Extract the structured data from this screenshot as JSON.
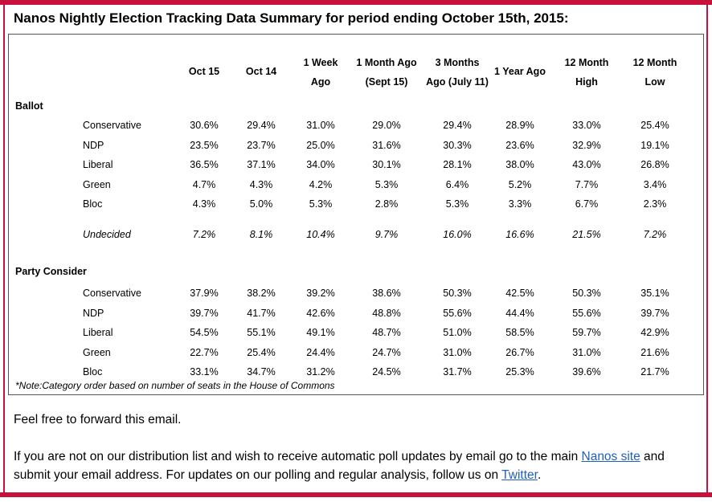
{
  "title": "Nanos Nightly Election Tracking Data Summary for period ending October 15th, 2015:",
  "columns": [
    [
      "Oct 15"
    ],
    [
      "Oct 14"
    ],
    [
      "1 Week",
      "Ago"
    ],
    [
      "1 Month Ago",
      "(Sept 15)"
    ],
    [
      "3 Months",
      "Ago (July 11)"
    ],
    [
      "1 Year Ago"
    ],
    [
      "12 Month",
      "High"
    ],
    [
      "12 Month",
      "Low"
    ]
  ],
  "ballot": {
    "section_label": "Ballot",
    "rows": [
      {
        "label": "Conservative",
        "values": [
          "30.6%",
          "29.4%",
          "31.0%",
          "29.0%",
          "29.4%",
          "28.9%",
          "33.0%",
          "25.4%"
        ]
      },
      {
        "label": "NDP",
        "values": [
          "23.5%",
          "23.7%",
          "25.0%",
          "31.6%",
          "30.3%",
          "23.6%",
          "32.9%",
          "19.1%"
        ]
      },
      {
        "label": "Liberal",
        "values": [
          "36.5%",
          "37.1%",
          "34.0%",
          "30.1%",
          "28.1%",
          "38.0%",
          "43.0%",
          "26.8%"
        ]
      },
      {
        "label": "Green",
        "values": [
          "4.7%",
          "4.3%",
          "4.2%",
          "5.3%",
          "6.4%",
          "5.2%",
          "7.7%",
          "3.4%"
        ]
      },
      {
        "label": "Bloc",
        "values": [
          "4.3%",
          "5.0%",
          "5.3%",
          "2.8%",
          "5.3%",
          "3.3%",
          "6.7%",
          "2.3%"
        ]
      }
    ],
    "undecided": {
      "label": "Undecided",
      "values": [
        "7.2%",
        "8.1%",
        "10.4%",
        "9.7%",
        "16.0%",
        "16.6%",
        "21.5%",
        "7.2%"
      ]
    }
  },
  "party_consider": {
    "section_label": "Party Consider",
    "rows": [
      {
        "label": "Conservative",
        "values": [
          "37.9%",
          "38.2%",
          "39.2%",
          "38.6%",
          "50.3%",
          "42.5%",
          "50.3%",
          "35.1%"
        ]
      },
      {
        "label": "NDP",
        "values": [
          "39.7%",
          "41.7%",
          "42.6%",
          "48.8%",
          "55.6%",
          "44.4%",
          "55.6%",
          "39.7%"
        ]
      },
      {
        "label": "Liberal",
        "values": [
          "54.5%",
          "55.1%",
          "49.1%",
          "48.7%",
          "51.0%",
          "58.5%",
          "59.7%",
          "42.9%"
        ]
      },
      {
        "label": "Green",
        "values": [
          "22.7%",
          "25.4%",
          "24.4%",
          "24.7%",
          "31.0%",
          "26.7%",
          "31.0%",
          "21.6%"
        ]
      },
      {
        "label": "Bloc",
        "values": [
          "33.1%",
          "34.7%",
          "31.2%",
          "24.5%",
          "31.7%",
          "25.3%",
          "39.6%",
          "21.7%"
        ]
      }
    ]
  },
  "note": "*Note:Category order based on number of seats in the House of Commons",
  "forward_text": "Feel free to forward this email.",
  "paragraph": {
    "part1": "If you are not on our distribution list and wish to receive automatic poll updates by email go to the main ",
    "link1": "Nanos site",
    "part2": " and submit your email address. For updates on our polling and regular analysis, follow us on ",
    "link2": "Twitter",
    "part3": "."
  }
}
